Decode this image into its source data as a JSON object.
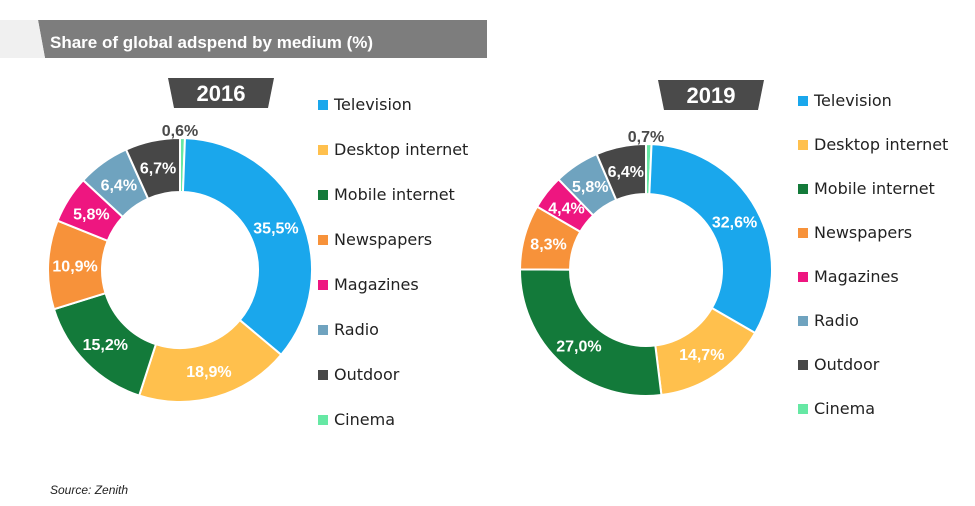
{
  "title": "Share of global adspend by medium (%)",
  "source": "Source: Zenith",
  "colors": {
    "Television": "#1aa7ec",
    "Desktop internet": "#ffc04d",
    "Mobile internet": "#137a3a",
    "Newspapers": "#f7923a",
    "Magazines": "#ee1680",
    "Radio": "#6fa3bf",
    "Outdoor": "#474747",
    "Cinema": "#66e8a4"
  },
  "chart_data": [
    {
      "type": "pie",
      "title": "2016",
      "categories": [
        "Television",
        "Desktop internet",
        "Mobile internet",
        "Newspapers",
        "Magazines",
        "Radio",
        "Outdoor",
        "Cinema"
      ],
      "values": [
        35.5,
        18.9,
        15.2,
        10.9,
        5.8,
        6.4,
        6.7,
        0.6
      ],
      "labels": [
        "35,5%",
        "18,9%",
        "15,2%",
        "10,9%",
        "5,8%",
        "6,4%",
        "6,7%",
        "0,6%"
      ],
      "legend_position": "right"
    },
    {
      "type": "pie",
      "title": "2019",
      "categories": [
        "Television",
        "Desktop internet",
        "Mobile internet",
        "Newspapers",
        "Magazines",
        "Radio",
        "Outdoor",
        "Cinema"
      ],
      "values": [
        32.6,
        14.7,
        27.0,
        8.3,
        4.4,
        5.8,
        6.4,
        0.7
      ],
      "labels": [
        "32,6%",
        "14,7%",
        "27,0%",
        "8,3%",
        "4,4%",
        "5,8%",
        "6,4%",
        "0,7%"
      ],
      "legend_position": "right"
    }
  ]
}
